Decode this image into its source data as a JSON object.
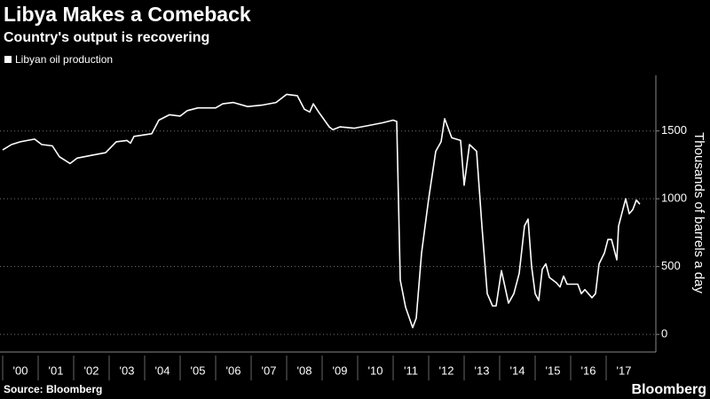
{
  "chart_data": {
    "type": "line",
    "title": "Libya Makes a Comeback",
    "subtitle": "Country's output is recovering",
    "y_label": "Thousands of barrels a day",
    "source": "Source: Bloomberg",
    "brand": "Bloomberg",
    "grid": true,
    "xlim": [
      2000,
      2018.4
    ],
    "ylim": [
      -130,
      1910
    ],
    "yticks": [
      0,
      500,
      1000,
      1500
    ],
    "xticks": [
      {
        "value": 2000,
        "label": "'00"
      },
      {
        "value": 2001,
        "label": "'01"
      },
      {
        "value": 2002,
        "label": "'02"
      },
      {
        "value": 2003,
        "label": "'03"
      },
      {
        "value": 2004,
        "label": "'04"
      },
      {
        "value": 2005,
        "label": "'05"
      },
      {
        "value": 2006,
        "label": "'06"
      },
      {
        "value": 2007,
        "label": "'07"
      },
      {
        "value": 2008,
        "label": "'08"
      },
      {
        "value": 2009,
        "label": "'09"
      },
      {
        "value": 2010,
        "label": "'10"
      },
      {
        "value": 2011,
        "label": "'11"
      },
      {
        "value": 2012,
        "label": "'12"
      },
      {
        "value": 2013,
        "label": "'13"
      },
      {
        "value": 2014,
        "label": "'14"
      },
      {
        "value": 2015,
        "label": "'15"
      },
      {
        "value": 2016,
        "label": "'16"
      },
      {
        "value": 2017,
        "label": "'17"
      }
    ],
    "x": [
      2000.0,
      2000.25,
      2000.5,
      2000.9,
      2001.1,
      2001.4,
      2001.6,
      2001.9,
      2002.1,
      2002.5,
      2002.9,
      2003.2,
      2003.5,
      2003.6,
      2003.7,
      2004.2,
      2004.4,
      2004.7,
      2005.0,
      2005.2,
      2005.5,
      2006.0,
      2006.2,
      2006.5,
      2006.9,
      2007.3,
      2007.7,
      2008.0,
      2008.3,
      2008.5,
      2008.65,
      2008.75,
      2008.9,
      2009.2,
      2009.3,
      2009.5,
      2009.9,
      2010.3,
      2010.7,
      2011.0,
      2011.1,
      2011.2,
      2011.35,
      2011.55,
      2011.65,
      2011.8,
      2012.0,
      2012.2,
      2012.35,
      2012.45,
      2012.65,
      2012.9,
      2013.0,
      2013.15,
      2013.35,
      2013.5,
      2013.65,
      2013.8,
      2013.9,
      2014.05,
      2014.25,
      2014.4,
      2014.55,
      2014.7,
      2014.8,
      2014.9,
      2015.0,
      2015.1,
      2015.2,
      2015.3,
      2015.4,
      2015.6,
      2015.7,
      2015.8,
      2015.9,
      2016.2,
      2016.3,
      2016.4,
      2016.6,
      2016.7,
      2016.8,
      2016.95,
      2017.05,
      2017.15,
      2017.3,
      2017.35,
      2017.55,
      2017.65,
      2017.75,
      2017.85,
      2017.95
    ],
    "series": [
      {
        "name": "Libyan oil production",
        "color": "#ffffff",
        "values": [
          1360,
          1400,
          1420,
          1440,
          1400,
          1390,
          1310,
          1260,
          1300,
          1320,
          1340,
          1420,
          1430,
          1410,
          1460,
          1480,
          1580,
          1620,
          1610,
          1650,
          1670,
          1670,
          1700,
          1710,
          1680,
          1690,
          1710,
          1770,
          1760,
          1660,
          1640,
          1700,
          1640,
          1530,
          1510,
          1530,
          1520,
          1540,
          1560,
          1580,
          1570,
          400,
          200,
          50,
          120,
          600,
          1000,
          1350,
          1420,
          1590,
          1450,
          1430,
          1100,
          1400,
          1350,
          800,
          300,
          210,
          210,
          470,
          230,
          300,
          450,
          800,
          850,
          500,
          300,
          250,
          480,
          520,
          420,
          380,
          350,
          430,
          370,
          370,
          300,
          330,
          270,
          300,
          520,
          600,
          700,
          700,
          550,
          800,
          1000,
          890,
          920,
          990,
          960
        ]
      }
    ]
  }
}
